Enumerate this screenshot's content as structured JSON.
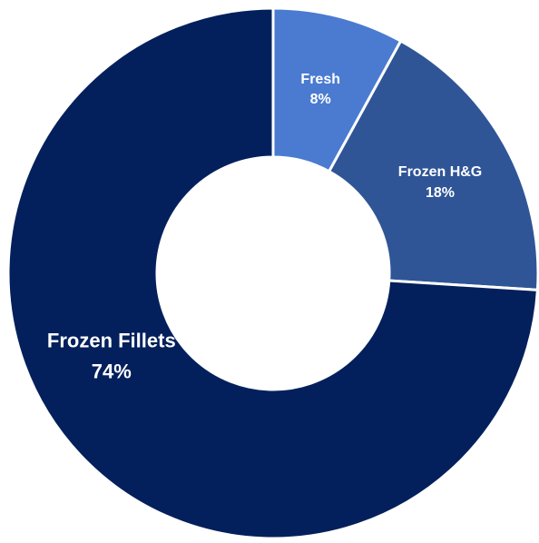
{
  "chart_data": {
    "type": "pie",
    "variant": "donut",
    "title": "",
    "legend": "none",
    "series": [
      {
        "name": "Fresh",
        "value": 8,
        "label_value": "8%",
        "color": "#4a7bd0"
      },
      {
        "name": "Frozen H&G",
        "value": 18,
        "label_value": "18%",
        "color": "#2f5597"
      },
      {
        "name": "Frozen Fillets",
        "value": 74,
        "label_value": "74%",
        "color": "#03205c"
      }
    ],
    "separator_color": "#ffffff",
    "label_color": "#ffffff"
  }
}
